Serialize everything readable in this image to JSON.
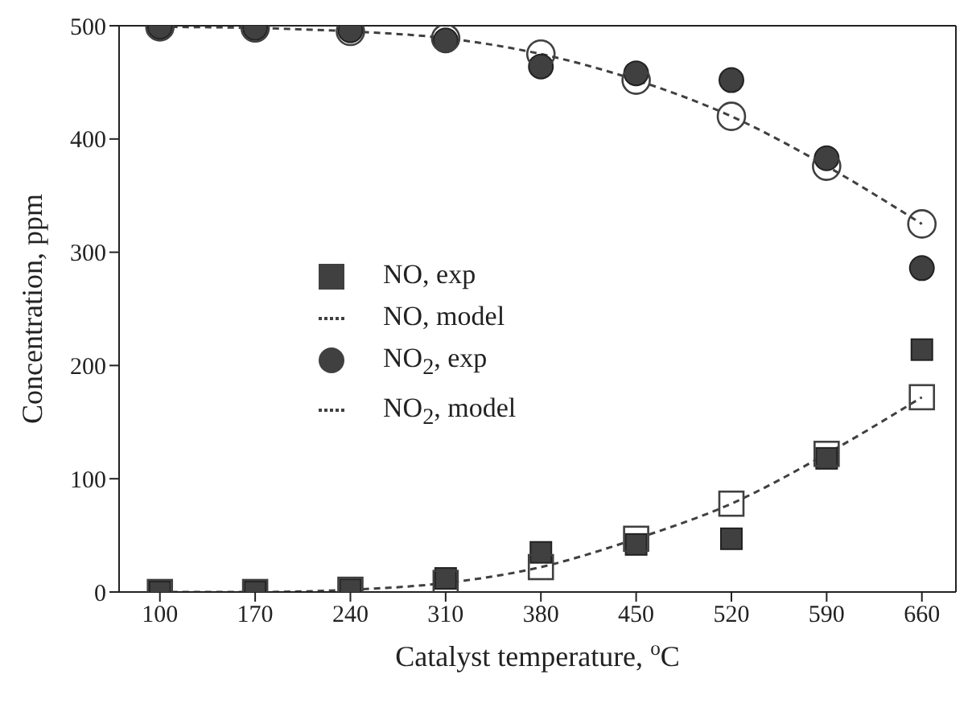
{
  "chart_data": {
    "type": "scatter",
    "xlabel": "Catalyst temperature, $^{o}$C",
    "ylabel": "Concentration, ppm",
    "x": [
      100,
      170,
      240,
      310,
      380,
      450,
      520,
      590,
      660
    ],
    "xlim": [
      70,
      685
    ],
    "xticks": [
      100,
      170,
      240,
      310,
      380,
      450,
      520,
      590,
      660
    ],
    "ylim": [
      0,
      500
    ],
    "yticks": [
      0,
      100,
      200,
      300,
      400,
      500
    ],
    "grid": false,
    "legend": "left",
    "series": [
      {
        "name": "NO, exp",
        "type": "scatter",
        "marker": "square",
        "color": "#404040",
        "values": [
          0,
          0,
          2,
          12,
          35,
          42,
          47,
          118,
          214
        ]
      },
      {
        "name": "NO, model",
        "type": "line",
        "marker": "square",
        "line_style": "dashed",
        "color": "#404040",
        "values": [
          0,
          0,
          2,
          8,
          22,
          47,
          78,
          122,
          172
        ]
      },
      {
        "name": "NO$_{2}$, exp",
        "type": "scatter",
        "marker": "circle",
        "color": "#404040",
        "values": [
          499,
          498,
          496,
          487,
          464,
          458,
          452,
          383,
          286
        ]
      },
      {
        "name": "NO$_{2}$, model",
        "type": "line",
        "marker": "circle",
        "line_style": "dashed",
        "color": "#404040",
        "values": [
          499,
          498,
          495,
          489,
          475,
          452,
          420,
          376,
          325
        ]
      }
    ]
  }
}
